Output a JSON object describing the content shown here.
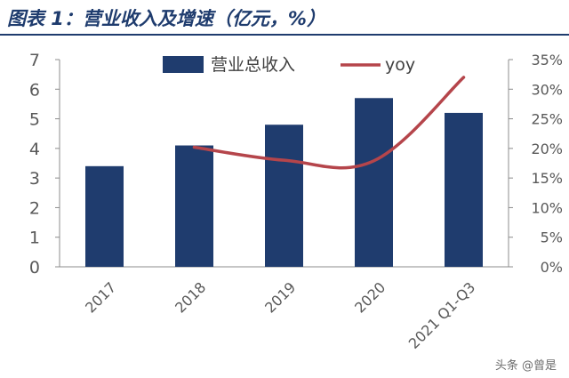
{
  "title": "图表 1：营业收入及增速（亿元，%）",
  "watermark": "头条 @曾是",
  "chart_data": {
    "type": "bar",
    "categories": [
      "2017",
      "2018",
      "2019",
      "2020",
      "2021 Q1-Q3"
    ],
    "series": [
      {
        "name": "营业总收入",
        "type": "bar",
        "axis": "left",
        "color": "#1f3c6e",
        "values": [
          3.4,
          4.1,
          4.8,
          5.7,
          5.2
        ]
      },
      {
        "name": "yoy",
        "type": "line",
        "axis": "right",
        "color": "#b5454b",
        "values": [
          null,
          20.2,
          18.0,
          17.9,
          32.0
        ]
      }
    ],
    "y_left": {
      "min": 0,
      "max": 7,
      "ticks": [
        "0",
        "1",
        "2",
        "3",
        "4",
        "5",
        "6",
        "7"
      ]
    },
    "y_right": {
      "min": 0,
      "max": 35,
      "ticks": [
        "0%",
        "5%",
        "10%",
        "15%",
        "20%",
        "25%",
        "30%",
        "35%"
      ]
    },
    "legend_position": "top-center",
    "grid": false
  }
}
